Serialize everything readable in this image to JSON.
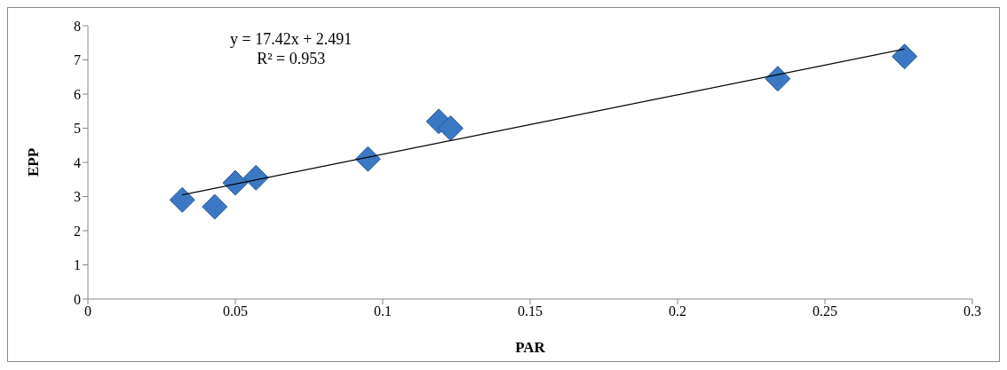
{
  "chart_data": {
    "type": "scatter",
    "xlabel": "PAR",
    "ylabel": "EPP",
    "xlim": [
      0,
      0.3
    ],
    "xticks": [
      0,
      0.05,
      0.1,
      0.15,
      0.2,
      0.25,
      0.3
    ],
    "ylim": [
      0,
      8
    ],
    "yticks": [
      0,
      1,
      2,
      3,
      4,
      5,
      6,
      7,
      8
    ],
    "marker": "diamond",
    "series": [
      {
        "color": "#3b78c4",
        "x": [
          0.032,
          0.043,
          0.05,
          0.057,
          0.095,
          0.119,
          0.123,
          0.234,
          0.277
        ],
        "values": [
          2.9,
          2.7,
          3.4,
          3.55,
          4.1,
          5.2,
          5.0,
          6.45,
          7.1
        ]
      },
      {
        "type": "line",
        "color": "#000000",
        "x": [
          0.032,
          0.277
        ],
        "values": [
          3.05,
          7.32
        ],
        "marker": "none",
        "line_style": "solid"
      }
    ],
    "annotations": [
      "y = 17.42x + 2.491",
      "R² = 0.953"
    ]
  }
}
